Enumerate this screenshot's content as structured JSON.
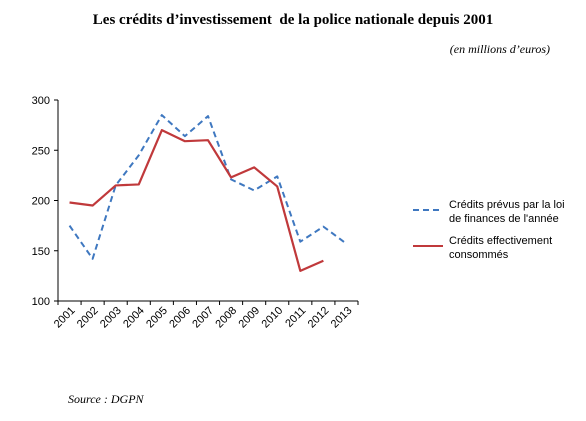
{
  "header": {
    "title": "Les crédits d’investissement  de la police nationale depuis 2001",
    "subtitle": "(en millions d’euros)"
  },
  "footer": {
    "source": "Source : DGPN"
  },
  "chart_data": {
    "type": "line",
    "title": "Les crédits d’investissement  de la police nationale depuis 2001",
    "subtitle": "(en millions d’euros)",
    "xlabel": "",
    "ylabel": "",
    "categories": [
      "2001",
      "2002",
      "2003",
      "2004",
      "2005",
      "2006",
      "2007",
      "2008",
      "2009",
      "2010",
      "2011",
      "2012",
      "2013"
    ],
    "ylim": [
      100,
      300
    ],
    "yticks": [
      100,
      150,
      200,
      250,
      300
    ],
    "grid": false,
    "legend_position": "right",
    "series": [
      {
        "name": "Crédits prévus par la loi de finances de l'année",
        "legend_lines": [
          "Crédits prévus par la loi",
          "de finances de l'année"
        ],
        "color": "#3f78c0",
        "dash": "dashed",
        "values": [
          175,
          142,
          215,
          245,
          285,
          264,
          284,
          221,
          210,
          224,
          159,
          174,
          157
        ]
      },
      {
        "name": "Crédits effectivement consommés",
        "legend_lines": [
          "Crédits effectivement",
          "consommés"
        ],
        "color": "#c0393b",
        "dash": "solid",
        "values": [
          198,
          195,
          215,
          216,
          270,
          259,
          260,
          223,
          233,
          214,
          130,
          140,
          null
        ]
      }
    ]
  }
}
